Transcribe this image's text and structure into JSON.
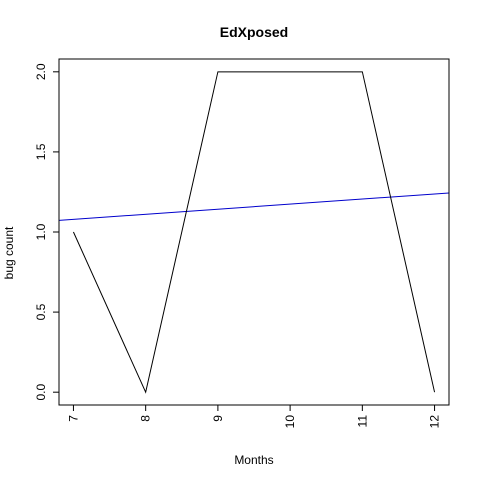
{
  "chart_data": {
    "type": "line",
    "title": "EdXposed",
    "xlabel": "Months",
    "ylabel": "bug count",
    "xlim": [
      6.8,
      12.2
    ],
    "ylim": [
      -0.08,
      2.08
    ],
    "x_ticks": [
      7,
      8,
      9,
      10,
      11,
      12
    ],
    "y_ticks": [
      0.0,
      0.5,
      1.0,
      1.5,
      2.0
    ],
    "x_tick_labels": [
      "7",
      "8",
      "9",
      "10",
      "11",
      "12"
    ],
    "y_tick_labels": [
      "0.0",
      "0.5",
      "1.0",
      "1.5",
      "2.0"
    ],
    "grid": false,
    "legend": "none",
    "series": [
      {
        "color": "#000000",
        "x": [
          7,
          8,
          9,
          10,
          11,
          12
        ],
        "y": [
          1,
          0,
          2,
          2,
          2,
          0
        ]
      }
    ],
    "trend_line": {
      "color": "#0000cc",
      "intercept": 0.857,
      "slope": 0.0317
    }
  }
}
